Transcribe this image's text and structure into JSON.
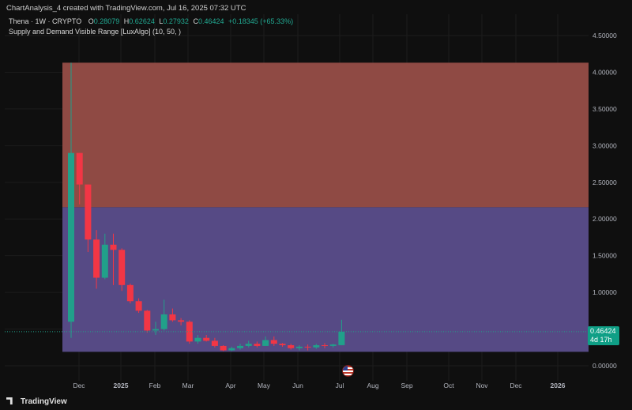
{
  "watermark": "ChartAnalysis_4 created with TradingView.com, Jul 16, 2025 07:32 UTC",
  "legend": {
    "symbol": "Thena · 1W · CRYPTO",
    "o_label": "O",
    "o_value": "0.28079",
    "h_label": "H",
    "h_value": "0.62624",
    "l_label": "L",
    "l_value": "0.27932",
    "c_label": "C",
    "c_value": "0.46424",
    "change": "+0.18345 (+65.33%)",
    "indicator": "Supply and Demand Visible Range [LuxAlgo] (10, 50, )"
  },
  "price_badge": {
    "price": "0.46424",
    "countdown": "4d 17h"
  },
  "footer": {
    "brand": "TradingView"
  },
  "chart_data": {
    "type": "candlestick",
    "y_ticks": [
      "0.00000",
      "0.50000",
      "1.00000",
      "1.50000",
      "2.00000",
      "2.50000",
      "3.00000",
      "3.50000",
      "4.00000",
      "4.50000"
    ],
    "x_ticks": [
      "Dec",
      "2025",
      "Feb",
      "Mar",
      "Apr",
      "May",
      "Jun",
      "Jul",
      "Aug",
      "Sep",
      "Oct",
      "Nov",
      "Dec",
      "2026"
    ],
    "ylim": [
      0,
      4.5
    ],
    "zones": [
      {
        "name": "supply",
        "top": 4.13,
        "bottom": 2.16,
        "color": "#8f4a44"
      },
      {
        "name": "demand",
        "top": 2.16,
        "bottom": 0.19,
        "color": "#564a85"
      }
    ],
    "last_price": 0.46424,
    "colors": {
      "up": "#21a08a",
      "down": "#f23645"
    },
    "candles": [
      {
        "o": 0.6,
        "h": 4.13,
        "l": 0.38,
        "c": 2.9
      },
      {
        "o": 2.9,
        "h": 2.9,
        "l": 2.2,
        "c": 2.47
      },
      {
        "o": 2.47,
        "h": 2.47,
        "l": 1.55,
        "c": 1.72
      },
      {
        "o": 1.72,
        "h": 1.85,
        "l": 1.05,
        "c": 1.2
      },
      {
        "o": 1.2,
        "h": 1.8,
        "l": 1.18,
        "c": 1.65
      },
      {
        "o": 1.65,
        "h": 1.8,
        "l": 1.1,
        "c": 1.58
      },
      {
        "o": 1.58,
        "h": 1.6,
        "l": 1.02,
        "c": 1.1
      },
      {
        "o": 1.1,
        "h": 1.12,
        "l": 0.85,
        "c": 0.88
      },
      {
        "o": 0.88,
        "h": 0.92,
        "l": 0.72,
        "c": 0.75
      },
      {
        "o": 0.75,
        "h": 0.76,
        "l": 0.45,
        "c": 0.48
      },
      {
        "o": 0.48,
        "h": 0.6,
        "l": 0.42,
        "c": 0.5
      },
      {
        "o": 0.5,
        "h": 0.9,
        "l": 0.48,
        "c": 0.7
      },
      {
        "o": 0.7,
        "h": 0.78,
        "l": 0.6,
        "c": 0.62
      },
      {
        "o": 0.62,
        "h": 0.65,
        "l": 0.55,
        "c": 0.6
      },
      {
        "o": 0.6,
        "h": 0.62,
        "l": 0.3,
        "c": 0.33
      },
      {
        "o": 0.33,
        "h": 0.42,
        "l": 0.3,
        "c": 0.38
      },
      {
        "o": 0.38,
        "h": 0.42,
        "l": 0.33,
        "c": 0.34
      },
      {
        "o": 0.34,
        "h": 0.38,
        "l": 0.25,
        "c": 0.27
      },
      {
        "o": 0.27,
        "h": 0.28,
        "l": 0.2,
        "c": 0.21
      },
      {
        "o": 0.21,
        "h": 0.26,
        "l": 0.2,
        "c": 0.24
      },
      {
        "o": 0.24,
        "h": 0.3,
        "l": 0.22,
        "c": 0.27
      },
      {
        "o": 0.27,
        "h": 0.34,
        "l": 0.25,
        "c": 0.3
      },
      {
        "o": 0.3,
        "h": 0.33,
        "l": 0.25,
        "c": 0.27
      },
      {
        "o": 0.27,
        "h": 0.4,
        "l": 0.27,
        "c": 0.35
      },
      {
        "o": 0.35,
        "h": 0.4,
        "l": 0.27,
        "c": 0.3
      },
      {
        "o": 0.3,
        "h": 0.31,
        "l": 0.26,
        "c": 0.28
      },
      {
        "o": 0.28,
        "h": 0.3,
        "l": 0.22,
        "c": 0.24
      },
      {
        "o": 0.24,
        "h": 0.28,
        "l": 0.21,
        "c": 0.26
      },
      {
        "o": 0.26,
        "h": 0.29,
        "l": 0.21,
        "c": 0.25
      },
      {
        "o": 0.25,
        "h": 0.3,
        "l": 0.23,
        "c": 0.28
      },
      {
        "o": 0.28,
        "h": 0.31,
        "l": 0.24,
        "c": 0.27
      },
      {
        "o": 0.27,
        "h": 0.3,
        "l": 0.25,
        "c": 0.29
      },
      {
        "o": 0.28079,
        "h": 0.62624,
        "l": 0.27932,
        "c": 0.46424
      }
    ]
  }
}
